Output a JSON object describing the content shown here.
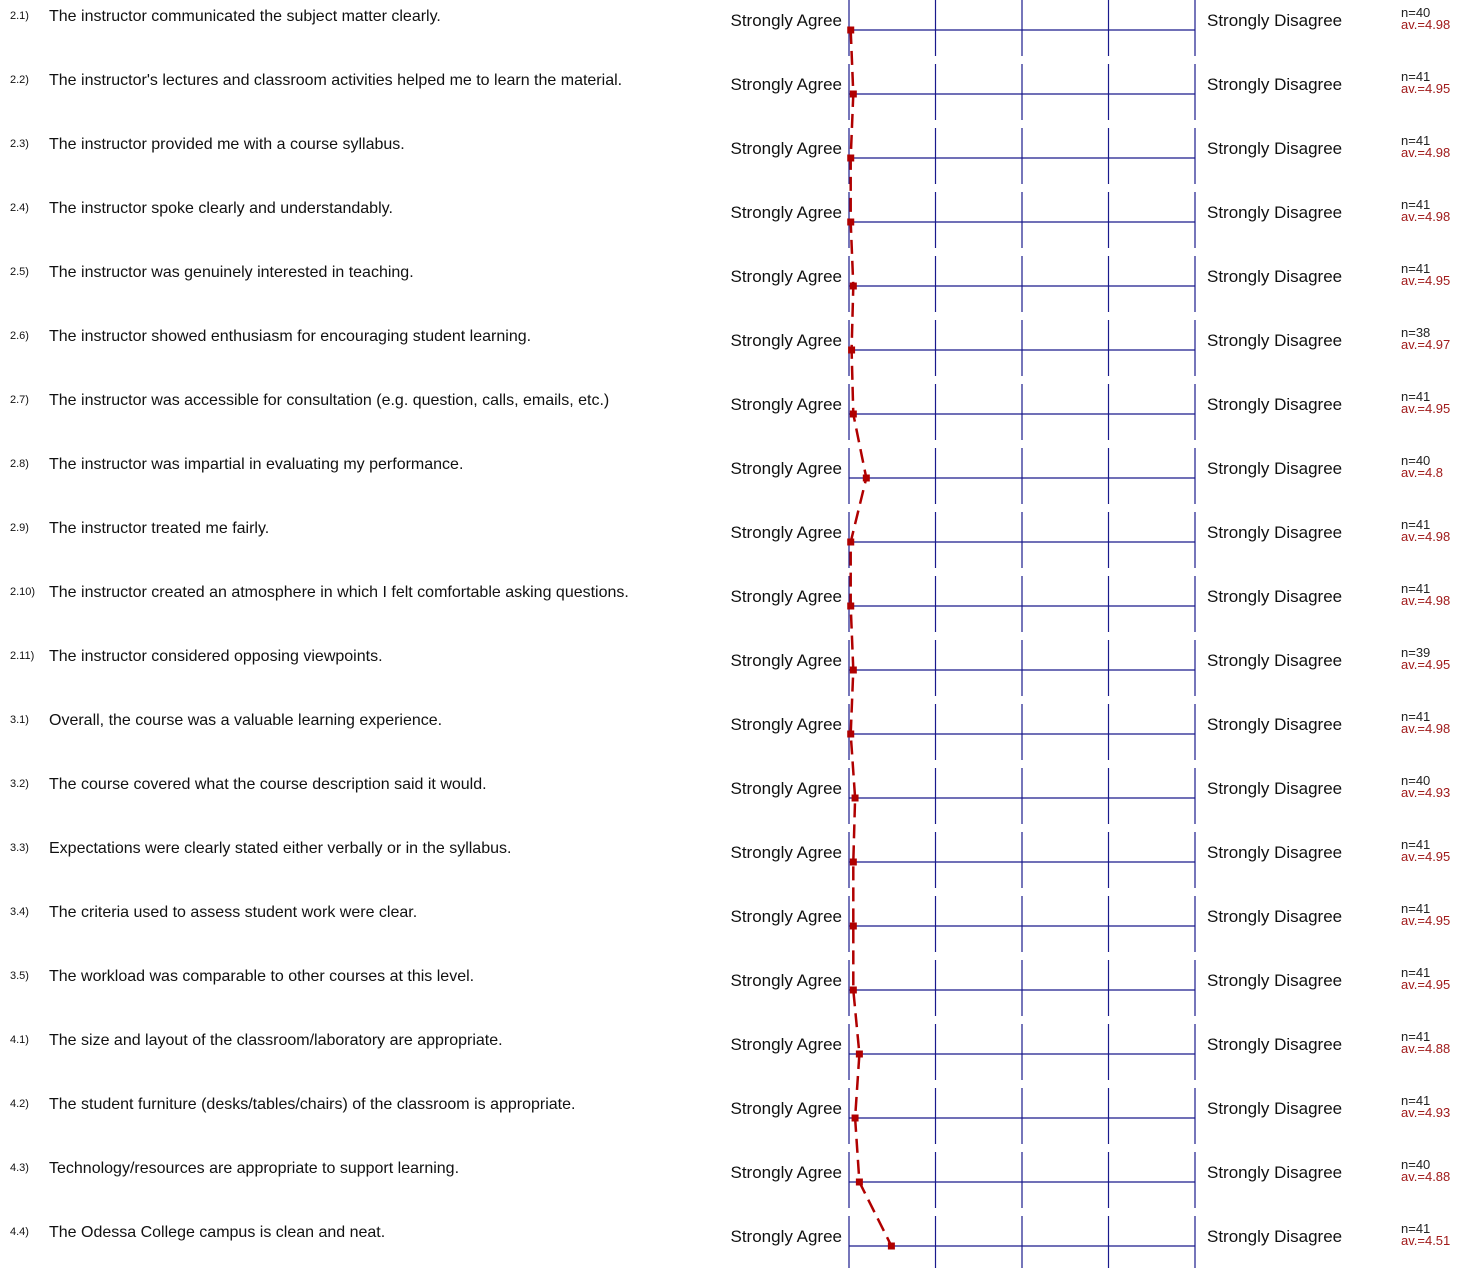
{
  "scale": {
    "left_label": "Strongly Agree",
    "right_label": "Strongly Disagree",
    "min": 1,
    "max": 5
  },
  "colors": {
    "axis": "#1a1a8c",
    "profile": "#b00000"
  },
  "items": [
    {
      "num": "2.1)",
      "text": "The instructor communicated the subject matter clearly.",
      "n": "n=40",
      "av": "av.=4.98",
      "value": 4.98
    },
    {
      "num": "2.2)",
      "text": "The instructor's lectures and classroom activities helped me to learn the material.",
      "n": "n=41",
      "av": "av.=4.95",
      "value": 4.95
    },
    {
      "num": "2.3)",
      "text": "The instructor provided me with a course syllabus.",
      "n": "n=41",
      "av": "av.=4.98",
      "value": 4.98
    },
    {
      "num": "2.4)",
      "text": "The instructor spoke clearly and understandably.",
      "n": "n=41",
      "av": "av.=4.98",
      "value": 4.98
    },
    {
      "num": "2.5)",
      "text": "The instructor was genuinely interested in teaching.",
      "n": "n=41",
      "av": "av.=4.95",
      "value": 4.95
    },
    {
      "num": "2.6)",
      "text": "The instructor showed enthusiasm for encouraging student learning.",
      "n": "n=38",
      "av": "av.=4.97",
      "value": 4.97
    },
    {
      "num": "2.7)",
      "text": "The instructor was accessible for consultation (e.g. question, calls, emails, etc.)",
      "n": "n=41",
      "av": "av.=4.95",
      "value": 4.95
    },
    {
      "num": "2.8)",
      "text": "The instructor was impartial in evaluating my performance.",
      "n": "n=40",
      "av": "av.=4.8",
      "value": 4.8
    },
    {
      "num": "2.9)",
      "text": "The instructor treated me fairly.",
      "n": "n=41",
      "av": "av.=4.98",
      "value": 4.98
    },
    {
      "num": "2.10)",
      "text": "The instructor created an atmosphere in which I felt comfortable asking questions.",
      "n": "n=41",
      "av": "av.=4.98",
      "value": 4.98
    },
    {
      "num": "2.11)",
      "text": "The instructor considered opposing viewpoints.",
      "n": "n=39",
      "av": "av.=4.95",
      "value": 4.95
    },
    {
      "num": "3.1)",
      "text": "Overall, the course was a valuable learning experience.",
      "n": "n=41",
      "av": "av.=4.98",
      "value": 4.98
    },
    {
      "num": "3.2)",
      "text": "The course covered what the course description said it would.",
      "n": "n=40",
      "av": "av.=4.93",
      "value": 4.93
    },
    {
      "num": "3.3)",
      "text": "Expectations were clearly stated either verbally or in the syllabus.",
      "n": "n=41",
      "av": "av.=4.95",
      "value": 4.95
    },
    {
      "num": "3.4)",
      "text": "The criteria used to assess student work were clear.",
      "n": "n=41",
      "av": "av.=4.95",
      "value": 4.95
    },
    {
      "num": "3.5)",
      "text": "The workload was comparable to other courses at this level.",
      "n": "n=41",
      "av": "av.=4.95",
      "value": 4.95
    },
    {
      "num": "4.1)",
      "text": "The size and layout of the classroom/laboratory are appropriate.",
      "n": "n=41",
      "av": "av.=4.88",
      "value": 4.88
    },
    {
      "num": "4.2)",
      "text": "The student furniture (desks/tables/chairs) of the classroom is appropriate.",
      "n": "n=41",
      "av": "av.=4.93",
      "value": 4.93
    },
    {
      "num": "4.3)",
      "text": "Technology/resources are appropriate to support learning.",
      "n": "n=40",
      "av": "av.=4.88",
      "value": 4.88
    },
    {
      "num": "4.4)",
      "text": "The Odessa College campus is clean and neat.",
      "n": "n=41",
      "av": "av.=4.51",
      "value": 4.51
    }
  ],
  "chart_data": {
    "type": "line",
    "categories": [
      "2.1)",
      "2.2)",
      "2.3)",
      "2.4)",
      "2.5)",
      "2.6)",
      "2.7)",
      "2.8)",
      "2.9)",
      "2.10)",
      "2.11)",
      "3.1)",
      "3.2)",
      "3.3)",
      "3.4)",
      "3.5)",
      "4.1)",
      "4.2)",
      "4.3)",
      "4.4)"
    ],
    "values": [
      4.98,
      4.95,
      4.98,
      4.98,
      4.95,
      4.97,
      4.95,
      4.8,
      4.98,
      4.98,
      4.95,
      4.98,
      4.93,
      4.95,
      4.95,
      4.95,
      4.88,
      4.93,
      4.88,
      4.51
    ],
    "n": [
      40,
      41,
      41,
      41,
      41,
      38,
      41,
      40,
      41,
      41,
      39,
      41,
      40,
      41,
      41,
      41,
      41,
      41,
      40,
      41
    ],
    "scale_left": "Strongly Agree",
    "scale_right": "Strongly Disagree",
    "xlim": [
      5,
      1
    ],
    "orientation": "horizontal-profile",
    "line_style": "dashed"
  }
}
